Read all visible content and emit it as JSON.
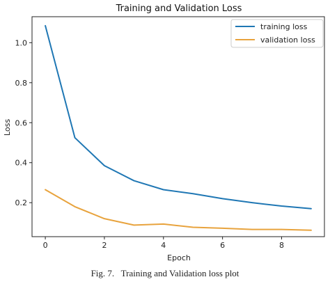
{
  "chart_data": {
    "type": "line",
    "title": "Training and Validation Loss",
    "xlabel": "Epoch",
    "ylabel": "Loss",
    "x": [
      0,
      1,
      2,
      3,
      4,
      5,
      6,
      7,
      8,
      9
    ],
    "xlim": [
      -0.45,
      9.45
    ],
    "ylim": [
      0.03,
      1.13
    ],
    "xticks": [
      0,
      2,
      4,
      6,
      8
    ],
    "yticks": [
      0.2,
      0.4,
      0.6,
      0.8,
      1.0
    ],
    "xtick_labels": [
      "0",
      "2",
      "4",
      "6",
      "8"
    ],
    "ytick_labels": [
      "0.2",
      "0.4",
      "0.6",
      "0.8",
      "1.0"
    ],
    "grid": false,
    "legend_position": "top-right",
    "series": [
      {
        "name": "training loss",
        "color": "#1f77b4",
        "values": [
          1.085,
          0.525,
          0.385,
          0.31,
          0.265,
          0.245,
          0.22,
          0.2,
          0.183,
          0.17
        ]
      },
      {
        "name": "validation loss",
        "color": "#e8a33d",
        "values": [
          0.265,
          0.18,
          0.12,
          0.088,
          0.093,
          0.077,
          0.072,
          0.066,
          0.066,
          0.062
        ]
      }
    ]
  },
  "caption": "Fig. 7.   Training and Validation loss plot"
}
